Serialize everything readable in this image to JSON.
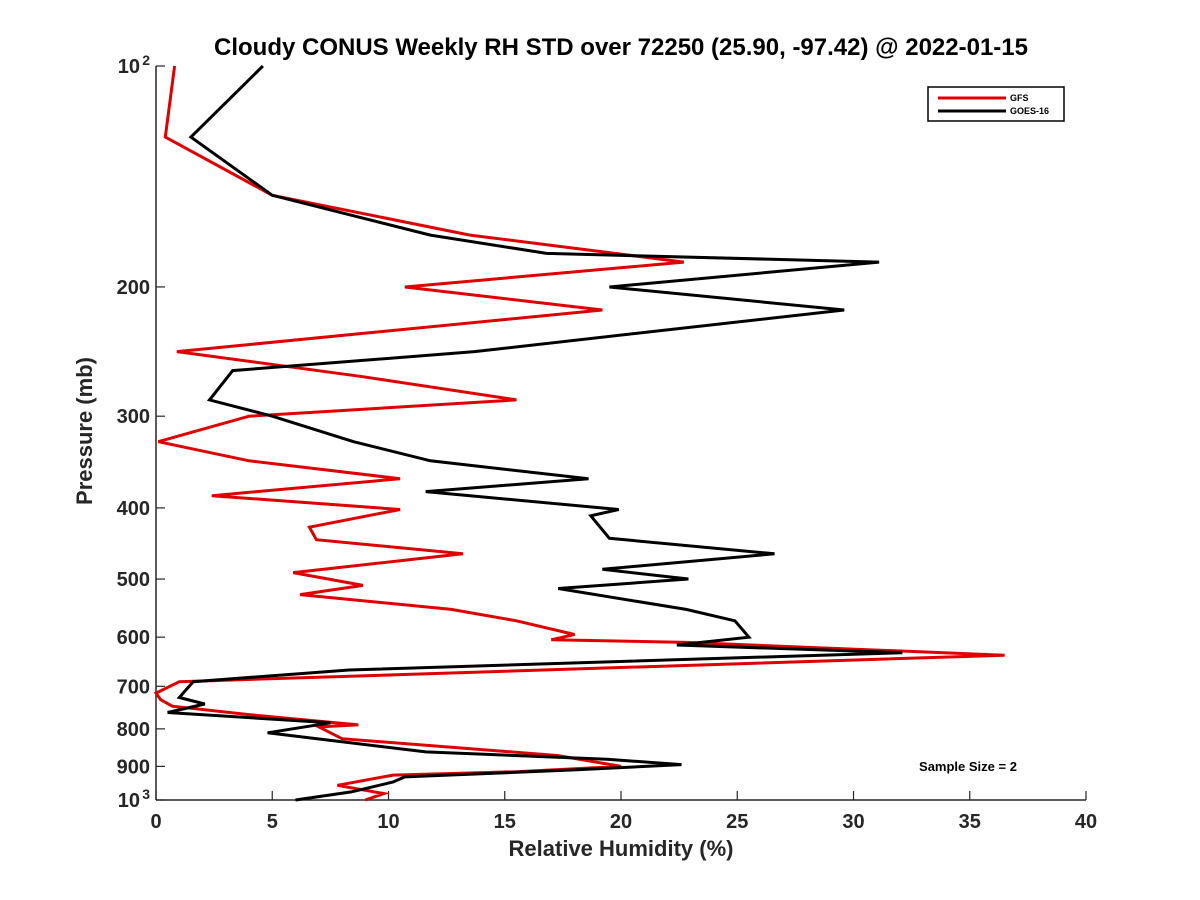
{
  "chart_data": {
    "type": "line",
    "title": "Cloudy CONUS Weekly RH STD over 72250 (25.90, -97.42) @ 2022-01-15",
    "xlabel": "Relative Humidity (%)",
    "ylabel": "Pressure (mb)",
    "xlim": [
      0,
      40
    ],
    "ylim": [
      100,
      1000
    ],
    "y_scale": "log",
    "y_reversed": true,
    "grid": false,
    "legend_position": "top-right",
    "x_ticks": [
      0,
      5,
      10,
      15,
      20,
      25,
      30,
      35,
      40
    ],
    "x_tick_labels": [
      "0",
      "5",
      "10",
      "15",
      "20",
      "25",
      "30",
      "35",
      "40"
    ],
    "y_ticks": [
      {
        "value": 100,
        "label": "10",
        "sup": "2"
      },
      {
        "value": 200,
        "label": "200",
        "sup": ""
      },
      {
        "value": 300,
        "label": "300",
        "sup": ""
      },
      {
        "value": 400,
        "label": "400",
        "sup": ""
      },
      {
        "value": 500,
        "label": "500",
        "sup": ""
      },
      {
        "value": 600,
        "label": "600",
        "sup": ""
      },
      {
        "value": 700,
        "label": "700",
        "sup": ""
      },
      {
        "value": 800,
        "label": "800",
        "sup": ""
      },
      {
        "value": 900,
        "label": "900",
        "sup": ""
      },
      {
        "value": 1000,
        "label": "10",
        "sup": "3"
      }
    ],
    "annotation": "Sample Size = 2",
    "series": [
      {
        "name": "GFS",
        "color": "#e00000",
        "points": [
          [
            0.8,
            100
          ],
          [
            0.4,
            125
          ],
          [
            5.0,
            150
          ],
          [
            13.5,
            170
          ],
          [
            22.7,
            185
          ],
          [
            10.7,
            200
          ],
          [
            19.2,
            215
          ],
          [
            0.9,
            245
          ],
          [
            8.9,
            265
          ],
          [
            15.5,
            285
          ],
          [
            4.0,
            300
          ],
          [
            0.1,
            325
          ],
          [
            4.0,
            345
          ],
          [
            10.5,
            365
          ],
          [
            2.4,
            385
          ],
          [
            10.5,
            402
          ],
          [
            6.6,
            425
          ],
          [
            6.9,
            442
          ],
          [
            13.2,
            462
          ],
          [
            5.9,
            490
          ],
          [
            8.9,
            510
          ],
          [
            6.2,
            525
          ],
          [
            12.7,
            550
          ],
          [
            15.5,
            570
          ],
          [
            18.0,
            595
          ],
          [
            17.0,
            605
          ],
          [
            22.8,
            610
          ],
          [
            36.5,
            635
          ],
          [
            1.0,
            690
          ],
          [
            0.0,
            715
          ],
          [
            0.2,
            730
          ],
          [
            0.7,
            745
          ],
          [
            4.0,
            765
          ],
          [
            8.7,
            790
          ],
          [
            7.0,
            795
          ],
          [
            8.0,
            825
          ],
          [
            17.3,
            870
          ],
          [
            20.0,
            900
          ],
          [
            15.5,
            915
          ],
          [
            10.2,
            925
          ],
          [
            7.8,
            955
          ],
          [
            9.8,
            980
          ],
          [
            9.0,
            1000
          ]
        ]
      },
      {
        "name": "GOES-16",
        "color": "#000000",
        "points": [
          [
            4.6,
            100
          ],
          [
            1.5,
            125
          ],
          [
            5.0,
            150
          ],
          [
            11.8,
            170
          ],
          [
            16.8,
            180
          ],
          [
            31.1,
            185
          ],
          [
            19.5,
            200
          ],
          [
            29.6,
            215
          ],
          [
            13.7,
            245
          ],
          [
            3.3,
            260
          ],
          [
            2.3,
            285
          ],
          [
            5.0,
            300
          ],
          [
            8.5,
            325
          ],
          [
            11.8,
            345
          ],
          [
            18.6,
            365
          ],
          [
            11.6,
            380
          ],
          [
            19.9,
            402
          ],
          [
            18.7,
            410
          ],
          [
            19.5,
            440
          ],
          [
            26.6,
            462
          ],
          [
            19.2,
            485
          ],
          [
            22.9,
            500
          ],
          [
            17.3,
            515
          ],
          [
            22.8,
            550
          ],
          [
            24.9,
            570
          ],
          [
            25.5,
            600
          ],
          [
            22.4,
            615
          ],
          [
            32.1,
            630
          ],
          [
            8.3,
            665
          ],
          [
            1.6,
            690
          ],
          [
            1.0,
            725
          ],
          [
            2.1,
            740
          ],
          [
            0.5,
            760
          ],
          [
            7.5,
            785
          ],
          [
            4.8,
            810
          ],
          [
            11.6,
            860
          ],
          [
            19.4,
            880
          ],
          [
            22.6,
            895
          ],
          [
            18.0,
            910
          ],
          [
            10.7,
            930
          ],
          [
            10.2,
            945
          ],
          [
            8.4,
            975
          ],
          [
            6.0,
            1000
          ]
        ]
      }
    ]
  }
}
